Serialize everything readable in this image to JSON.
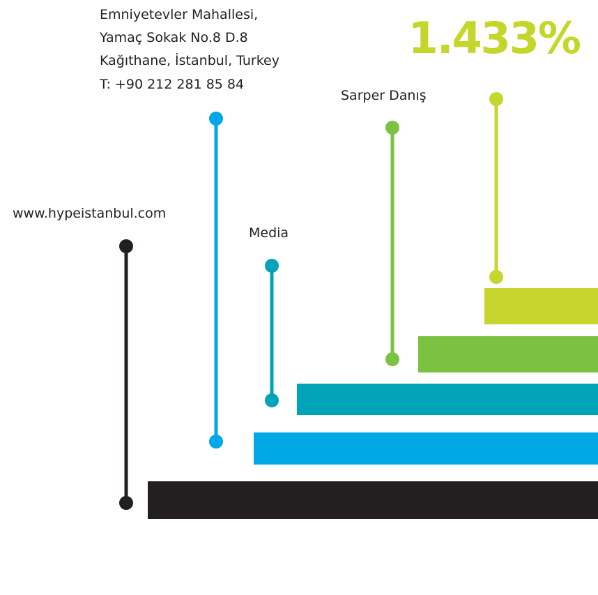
{
  "address": [
    "Emniyetevler Mahallesi,",
    "Yamaç Sokak No.8 D.8",
    "Kağıthane, İstanbul, Turkey",
    "T: +90 212 281 85 84"
  ],
  "headline": "1.433%",
  "labels": {
    "person": "Sarper Danış",
    "media": "Media",
    "website": "www.hypeistanbul.com"
  }
}
